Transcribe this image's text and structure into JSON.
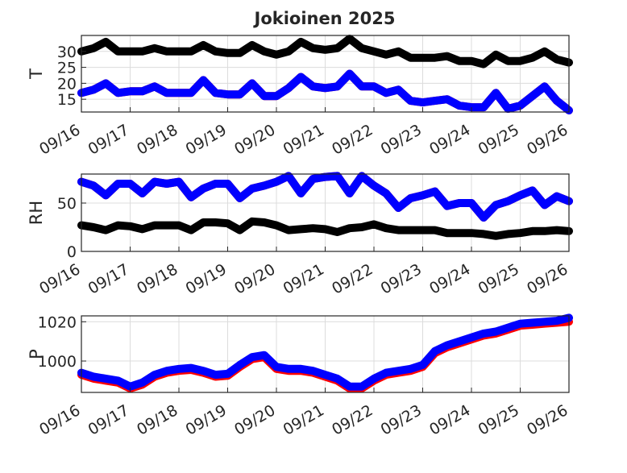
{
  "figure_title": "Jokioinen 2025",
  "chart_data": [
    {
      "type": "line",
      "ylabel": "T",
      "ylim": [
        11,
        35
      ],
      "yticks": [
        15,
        20,
        25,
        30
      ],
      "grid": true,
      "x_tick_labels": [
        "09/16",
        "09/17",
        "09/18",
        "09/19",
        "09/20",
        "09/21",
        "09/22",
        "09/23",
        "09/24",
        "09/25",
        "09/26"
      ],
      "x": [
        0,
        0.25,
        0.5,
        0.75,
        1,
        1.25,
        1.5,
        1.75,
        2,
        2.25,
        2.5,
        2.75,
        3,
        3.25,
        3.5,
        3.75,
        4,
        4.25,
        4.5,
        4.75,
        5,
        5.25,
        5.5,
        5.75,
        6,
        6.25,
        6.5,
        6.75,
        7,
        7.25,
        7.5,
        7.75,
        8,
        8.25,
        8.5,
        8.75,
        9,
        9.25,
        9.5,
        9.75,
        10
      ],
      "series": [
        {
          "color": "#000000",
          "values": [
            30,
            31,
            33,
            30,
            30,
            30,
            31,
            30,
            30,
            30,
            32,
            30,
            29.5,
            29.5,
            32,
            30,
            29,
            30,
            33,
            31,
            30.5,
            31,
            34,
            31,
            30,
            29,
            30,
            28,
            28,
            28,
            28.5,
            27,
            27,
            26,
            29,
            27,
            27,
            28,
            30,
            27.5,
            26.5
          ]
        },
        {
          "color": "#ff0000",
          "values": [
            17,
            18,
            20,
            17,
            17.5,
            17.5,
            19,
            17,
            17,
            17,
            21,
            17,
            16.5,
            16.5,
            20,
            16,
            16,
            18.5,
            22,
            19,
            18.5,
            19,
            23,
            19,
            19,
            17,
            18,
            14.5,
            14,
            14.5,
            15,
            13,
            12.5,
            12.5,
            17,
            12,
            13,
            16,
            19,
            14.5,
            11.5
          ]
        },
        {
          "color": "#0000ff",
          "values": [
            17,
            18,
            20,
            17,
            17.5,
            17.5,
            19,
            17,
            17,
            17,
            21,
            17,
            16.5,
            16.5,
            20,
            16,
            16,
            18.5,
            22,
            19,
            18.5,
            19,
            23,
            19,
            19,
            17,
            18,
            14.5,
            14,
            14.5,
            15,
            13,
            12.5,
            12.5,
            17,
            12,
            13,
            16,
            19,
            14.5,
            11.5
          ]
        }
      ]
    },
    {
      "type": "line",
      "ylabel": "RH",
      "ylim": [
        0,
        80
      ],
      "yticks": [
        0,
        50
      ],
      "grid": true,
      "x_tick_labels": [
        "09/16",
        "09/17",
        "09/18",
        "09/19",
        "09/20",
        "09/21",
        "09/22",
        "09/23",
        "09/24",
        "09/25",
        "09/26"
      ],
      "x": [
        0,
        0.25,
        0.5,
        0.75,
        1,
        1.25,
        1.5,
        1.75,
        2,
        2.25,
        2.5,
        2.75,
        3,
        3.25,
        3.5,
        3.75,
        4,
        4.25,
        4.5,
        4.75,
        5,
        5.25,
        5.5,
        5.75,
        6,
        6.25,
        6.5,
        6.75,
        7,
        7.25,
        7.5,
        7.75,
        8,
        8.25,
        8.5,
        8.75,
        9,
        9.25,
        9.5,
        9.75,
        10
      ],
      "series": [
        {
          "color": "#ff0000",
          "values": [
            72,
            68,
            58,
            70,
            70,
            60,
            72,
            70,
            72,
            56,
            65,
            70,
            70,
            55,
            65,
            68,
            72,
            78,
            60,
            75,
            77,
            78,
            60,
            78,
            68,
            60,
            45,
            55,
            58,
            62,
            47,
            50,
            50,
            35,
            48,
            52,
            58,
            63,
            48,
            57,
            52
          ]
        },
        {
          "color": "#0000ff",
          "values": [
            72,
            68,
            58,
            70,
            70,
            60,
            72,
            70,
            72,
            56,
            65,
            70,
            70,
            55,
            65,
            68,
            72,
            78,
            60,
            75,
            77,
            78,
            60,
            78,
            68,
            60,
            45,
            55,
            58,
            62,
            47,
            50,
            50,
            35,
            48,
            52,
            58,
            63,
            48,
            57,
            52
          ]
        },
        {
          "color": "#000000",
          "values": [
            27,
            25,
            22,
            27,
            26,
            23,
            27,
            27,
            27,
            22,
            30,
            30,
            29,
            22,
            31,
            30,
            27,
            22,
            23,
            24,
            23,
            20,
            24,
            25,
            28,
            24,
            22,
            22,
            22,
            22,
            19,
            19,
            19,
            18,
            16,
            18,
            19,
            21,
            21,
            22,
            21
          ]
        }
      ]
    },
    {
      "type": "line",
      "ylabel": "P",
      "ylim": [
        984,
        1023
      ],
      "yticks": [
        1000,
        1020
      ],
      "grid": true,
      "x_tick_labels": [
        "09/16",
        "09/17",
        "09/18",
        "09/19",
        "09/20",
        "09/21",
        "09/22",
        "09/23",
        "09/24",
        "09/25",
        "09/26"
      ],
      "x": [
        0,
        0.25,
        0.5,
        0.75,
        1,
        1.25,
        1.5,
        1.75,
        2,
        2.25,
        2.5,
        2.75,
        3,
        3.25,
        3.5,
        3.75,
        4,
        4.25,
        4.5,
        4.75,
        5,
        5.25,
        5.5,
        5.75,
        6,
        6.25,
        6.5,
        6.75,
        7,
        7.25,
        7.5,
        7.75,
        8,
        8.25,
        8.5,
        8.75,
        9,
        9.25,
        9.5,
        9.75,
        10
      ],
      "series": [
        {
          "color": "#ff0000",
          "values": [
            993,
            991,
            990,
            989,
            986,
            988,
            992,
            994,
            995,
            995.5,
            994,
            992,
            992.5,
            997,
            1001,
            1002,
            996,
            995,
            995,
            994,
            992,
            990,
            986,
            986,
            990,
            993,
            994,
            995,
            997,
            1004,
            1007,
            1009,
            1011,
            1013,
            1014,
            1016,
            1018,
            1018.5,
            1019,
            1019.5,
            1020
          ]
        },
        {
          "color": "#0000ff",
          "values": [
            994,
            992,
            991,
            990,
            987,
            989,
            993,
            995,
            996,
            996.5,
            995,
            993,
            993.5,
            998,
            1002,
            1003,
            997,
            996,
            996,
            995,
            993,
            991,
            987,
            987,
            991,
            994,
            995,
            996,
            998,
            1005,
            1008,
            1010,
            1012,
            1014,
            1015,
            1017,
            1019,
            1019.5,
            1020,
            1020.5,
            1022
          ]
        }
      ]
    }
  ]
}
